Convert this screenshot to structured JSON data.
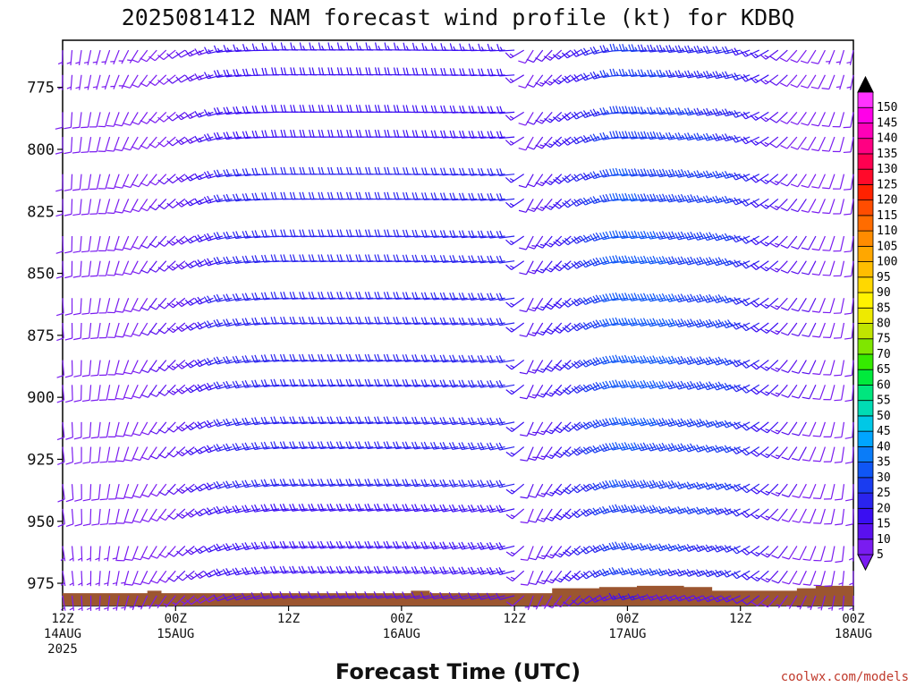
{
  "title": "2025081412 NAM forecast wind profile (kt) for KDBQ",
  "xlabel": "Forecast Time (UTC)",
  "credit": "coolwx.com/models",
  "chart_data": {
    "type": "wind-barb-time-height",
    "units": "kt",
    "y_axis": {
      "label": "",
      "ticks": [
        775,
        800,
        825,
        850,
        875,
        900,
        925,
        950,
        975
      ],
      "range": [
        756,
        984
      ],
      "inverted": true
    },
    "x_axis": {
      "range_hours": [
        0,
        84
      ],
      "ticks": [
        {
          "hour": 0,
          "lines": [
            "12Z",
            "14AUG",
            "2025"
          ]
        },
        {
          "hour": 12,
          "lines": [
            "00Z",
            "15AUG"
          ]
        },
        {
          "hour": 24,
          "lines": [
            "12Z"
          ]
        },
        {
          "hour": 36,
          "lines": [
            "00Z",
            "16AUG"
          ]
        },
        {
          "hour": 48,
          "lines": [
            "12Z"
          ]
        },
        {
          "hour": 60,
          "lines": [
            "00Z",
            "17AUG"
          ]
        },
        {
          "hour": 72,
          "lines": [
            "12Z"
          ]
        },
        {
          "hour": 84,
          "lines": [
            "00Z",
            "18AUG"
          ]
        }
      ]
    },
    "barb_levels_hpa": [
      760,
      770,
      785,
      795,
      810,
      820,
      835,
      845,
      860,
      870,
      885,
      895,
      910,
      920,
      935,
      945,
      960,
      970,
      980
    ],
    "ground_color": "#9c5630",
    "ground_hpa": [
      [
        0,
        979
      ],
      [
        9,
        979
      ],
      [
        9,
        978
      ],
      [
        10.5,
        978
      ],
      [
        10.5,
        979
      ],
      [
        37,
        979
      ],
      [
        37,
        978
      ],
      [
        39,
        978
      ],
      [
        39,
        979
      ],
      [
        52,
        979
      ],
      [
        52,
        977
      ],
      [
        57,
        977
      ],
      [
        57,
        976.5
      ],
      [
        61,
        976.5
      ],
      [
        61,
        976
      ],
      [
        66,
        976
      ],
      [
        66,
        976.5
      ],
      [
        69,
        976.5
      ],
      [
        69,
        978
      ],
      [
        78,
        978
      ],
      [
        78,
        977
      ],
      [
        80,
        977
      ],
      [
        80,
        976
      ],
      [
        84,
        976
      ]
    ],
    "sample_profiles": [
      {
        "hour": 0,
        "speed_kt": 8,
        "dir_deg": 170
      },
      {
        "hour": 6,
        "speed_kt": 8,
        "dir_deg": 190
      },
      {
        "hour": 12,
        "speed_kt": 10,
        "dir_deg": 220
      },
      {
        "hour": 18,
        "speed_kt": 20,
        "dir_deg": 250
      },
      {
        "hour": 24,
        "speed_kt": 20,
        "dir_deg": 260
      },
      {
        "hour": 36,
        "speed_kt": 20,
        "dir_deg": 260
      },
      {
        "hour": 48,
        "speed_kt": 20,
        "dir_deg": 255
      },
      {
        "hour": 50,
        "speed_kt": 10,
        "dir_deg": 200
      },
      {
        "hour": 60,
        "speed_kt": 30,
        "dir_deg": 255
      },
      {
        "hour": 72,
        "speed_kt": 25,
        "dir_deg": 245
      },
      {
        "hour": 78,
        "speed_kt": 10,
        "dir_deg": 210
      },
      {
        "hour": 84,
        "speed_kt": 8,
        "dir_deg": 180
      }
    ],
    "colorbar": {
      "values": [
        5,
        10,
        15,
        20,
        25,
        30,
        35,
        40,
        45,
        50,
        55,
        60,
        65,
        70,
        75,
        80,
        85,
        90,
        95,
        100,
        105,
        110,
        115,
        120,
        125,
        130,
        135,
        140,
        145,
        150
      ],
      "colors": [
        "#7a1cf0",
        "#5a10ee",
        "#3a0ef2",
        "#2a24ee",
        "#1a3cf0",
        "#0f56f5",
        "#0a7cf8",
        "#00a5ff",
        "#00c8e6",
        "#00dcb4",
        "#00e67e",
        "#00ea3c",
        "#35ea00",
        "#7fe600",
        "#c0e400",
        "#eeea00",
        "#fff300",
        "#ffd800",
        "#ffbe00",
        "#ffa700",
        "#ff8c00",
        "#ff6c00",
        "#ff4d00",
        "#ff2200",
        "#ff0a2a",
        "#ff0050",
        "#ff0082",
        "#ff00b8",
        "#ff00e8",
        "#ff33ff"
      ]
    }
  }
}
